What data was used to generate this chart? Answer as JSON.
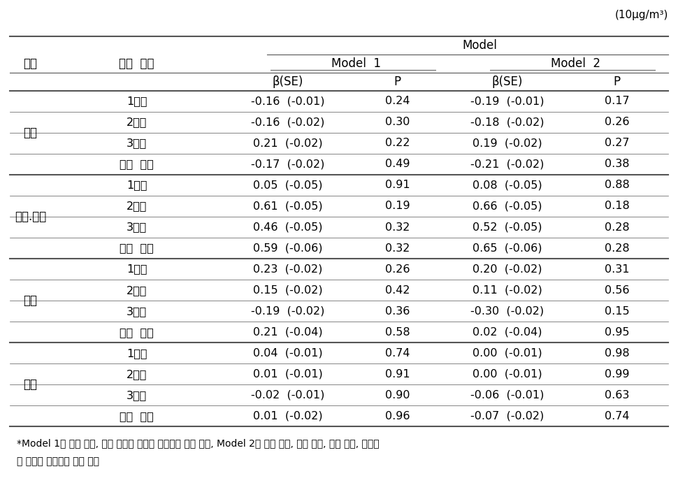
{
  "unit_text": "(10μg/m³)",
  "header_row1": [
    "",
    "",
    "Model",
    "",
    "",
    ""
  ],
  "header_row2": [
    "도시",
    "임신  기간",
    "Model 1",
    "",
    "Model 2",
    ""
  ],
  "header_row3": [
    "",
    "",
    "β(SE)",
    "P",
    "β(SE)",
    "P"
  ],
  "groups": [
    {
      "city": "서울",
      "rows": [
        [
          "1분기",
          "-0.16  (-0.01)",
          "0.24",
          "-0.19  (-0.01)",
          "0.17"
        ],
        [
          "2분기",
          "-0.16  (-0.02)",
          "0.30",
          "-0.18  (-0.02)",
          "0.26"
        ],
        [
          "3분기",
          "0.21  (-0.02)",
          "0.22",
          "0.19  (-0.02)",
          "0.27"
        ],
        [
          "전체  기간",
          "-0.17  (-0.02)",
          "0.49",
          "-0.21  (-0.02)",
          "0.38"
        ]
      ]
    },
    {
      "city": "천안.아산",
      "rows": [
        [
          "1분기",
          "0.05  (-0.05)",
          "0.91",
          "0.08  (-0.05)",
          "0.88"
        ],
        [
          "2분기",
          "0.61  (-0.05)",
          "0.19",
          "0.66  (-0.05)",
          "0.18"
        ],
        [
          "3분기",
          "0.46  (-0.05)",
          "0.32",
          "0.52  (-0.05)",
          "0.28"
        ],
        [
          "전체  기간",
          "0.59  (-0.06)",
          "0.32",
          "0.65  (-0.06)",
          "0.28"
        ]
      ]
    },
    {
      "city": "울산",
      "rows": [
        [
          "1분기",
          "0.23  (-0.02)",
          "0.26",
          "0.20  (-0.02)",
          "0.31"
        ],
        [
          "2분기",
          "0.15  (-0.02)",
          "0.42",
          "0.11  (-0.02)",
          "0.56"
        ],
        [
          "3분기",
          "-0.19  (-0.02)",
          "0.36",
          "-0.30  (-0.02)",
          "0.15"
        ],
        [
          "전체  기간",
          "0.21  (-0.04)",
          "0.58",
          "0.02  (-0.04)",
          "0.95"
        ]
      ]
    },
    {
      "city": "전체",
      "rows": [
        [
          "1분기",
          "0.04  (-0.01)",
          "0.74",
          "0.00  (-0.01)",
          "0.98"
        ],
        [
          "2분기",
          "0.01  (-0.01)",
          "0.91",
          "0.00  (-0.01)",
          "0.99"
        ],
        [
          "3분기",
          "-0.02  (-0.01)",
          "0.90",
          "-0.06  (-0.01)",
          "0.63"
        ],
        [
          "전체  기간",
          "0.01  (-0.02)",
          "0.96",
          "-0.07  (-0.02)",
          "0.74"
        ]
      ]
    }
  ],
  "footnote_line1": "*Model 1： 임신 주수, 태아 성별을 보정한 다중선형 회귀 분석, Model 2： 산모 나이, 임신 주수, 태아 성별, 출생수",
  "footnote_line2": "를 보정한 다중선형 회귀 분석",
  "bg_color": "#ffffff",
  "text_color": "#000000",
  "line_color": "#555555",
  "font_size": 11.5,
  "header_font_size": 12
}
